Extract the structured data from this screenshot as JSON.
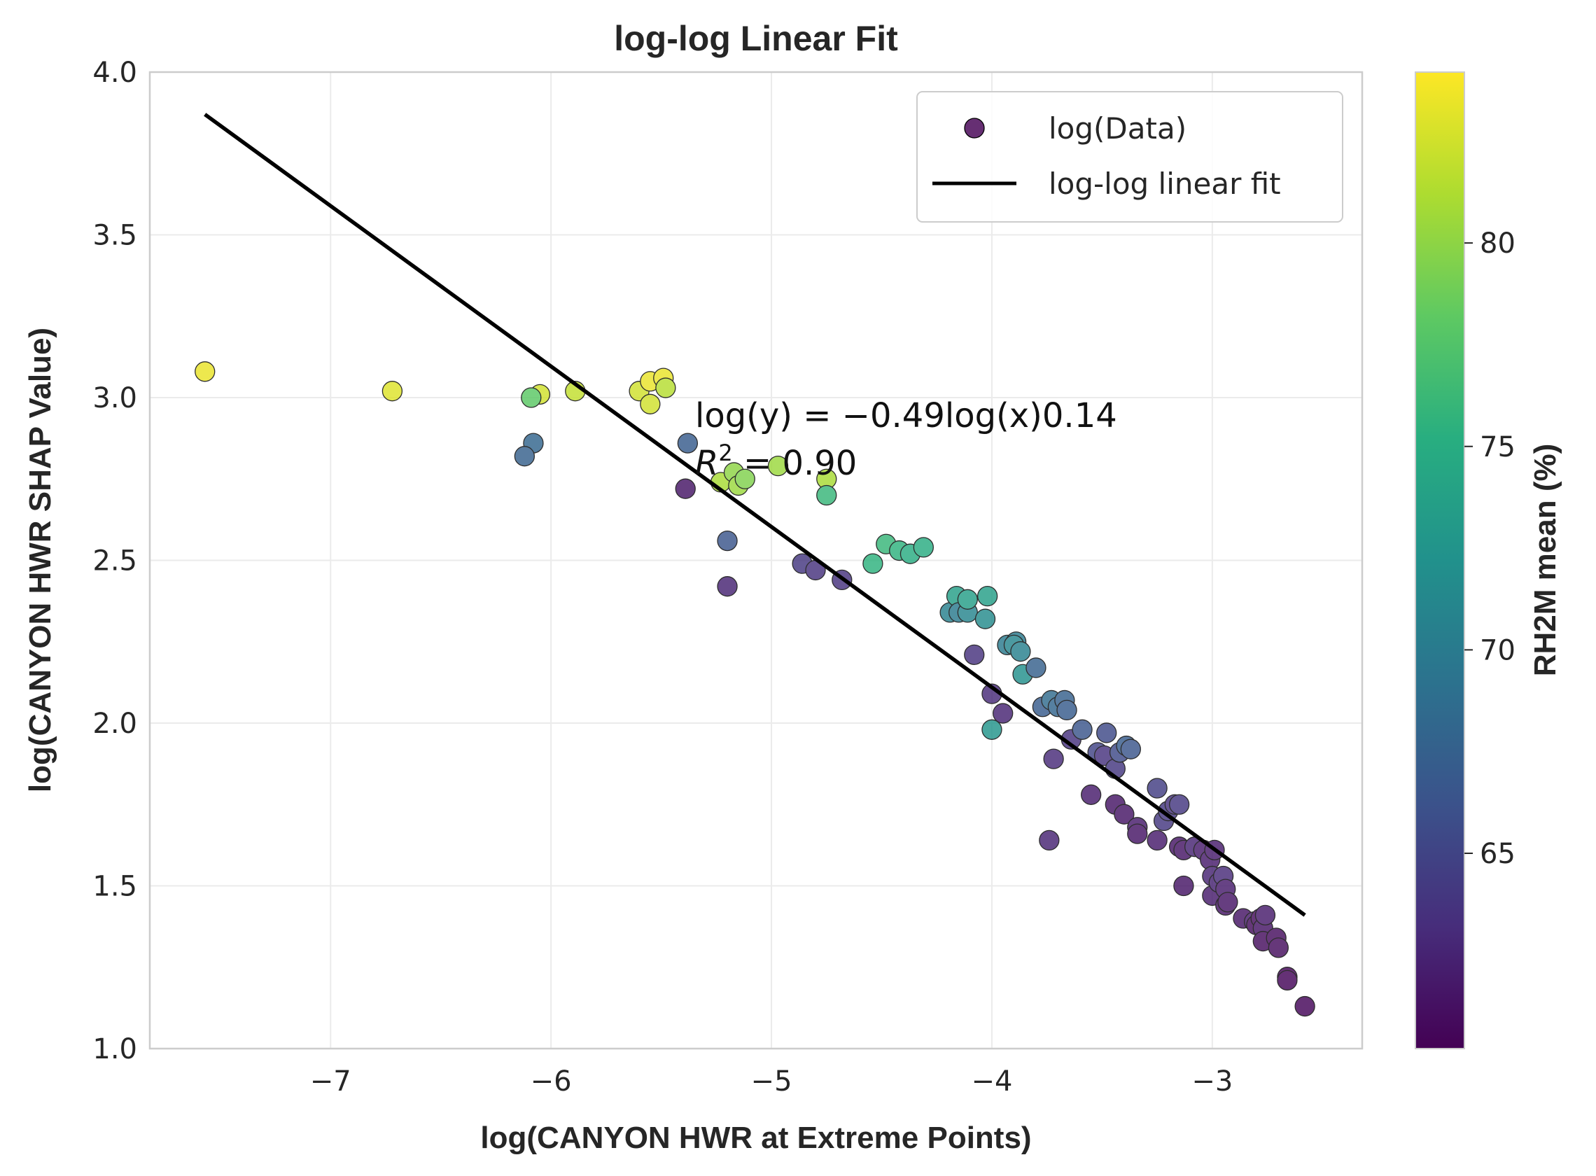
{
  "chart_data": {
    "type": "scatter",
    "title": "log-log Linear Fit",
    "xlabel": "log(CANYON HWR at Extreme Points)",
    "ylabel": "log(CANYON HWR SHAP Value)",
    "xlim": [
      -7.82,
      -2.32
    ],
    "ylim": [
      1.0,
      4.0
    ],
    "xticks": [
      -7,
      -6,
      -5,
      -4,
      -3
    ],
    "xtick_labels": [
      "−7",
      "−6",
      "−5",
      "−4",
      "−3"
    ],
    "yticks": [
      1.0,
      1.5,
      2.0,
      2.5,
      3.0,
      3.5,
      4.0
    ],
    "ytick_labels": [
      "1.0",
      "1.5",
      "2.0",
      "2.5",
      "3.0",
      "3.5",
      "4.0"
    ],
    "grid": true,
    "legend": {
      "position": "top-right",
      "entries": [
        {
          "label": "log(Data)",
          "kind": "marker"
        },
        {
          "label": "log-log linear fit",
          "kind": "line"
        }
      ]
    },
    "annotation": {
      "line1": "log(y) = −0.49log(x)0.14",
      "line2_base": "R",
      "line2_sup": "2",
      "line2_rest": " = 0.90",
      "x": -5.32,
      "y": 2.92
    },
    "fit_line": {
      "x": [
        -7.57,
        -2.58
      ],
      "y": [
        3.87,
        1.41
      ],
      "color": "#000000"
    },
    "colorbar": {
      "label": "RH2M mean (%)",
      "min": 60.2,
      "max": 84.2,
      "ticks": [
        65,
        70,
        75,
        80
      ],
      "tick_labels": [
        "65",
        "70",
        "75",
        "80"
      ],
      "colormap": "viridis"
    },
    "series": [
      {
        "name": "log(Data)",
        "points": [
          [
            -7.57,
            3.08,
            83.5
          ],
          [
            -6.72,
            3.02,
            83.0
          ],
          [
            -6.05,
            3.01,
            82.5
          ],
          [
            -5.89,
            3.02,
            82.0
          ],
          [
            -5.6,
            3.02,
            82.5
          ],
          [
            -5.55,
            3.05,
            83.5
          ],
          [
            -5.49,
            3.06,
            83.5
          ],
          [
            -5.48,
            3.03,
            81.5
          ],
          [
            -5.55,
            2.98,
            82.5
          ],
          [
            -6.09,
            3.0,
            78.0
          ],
          [
            -6.08,
            2.86,
            68.0
          ],
          [
            -6.12,
            2.82,
            67.5
          ],
          [
            -5.38,
            2.86,
            67.0
          ],
          [
            -5.39,
            2.72,
            61.5
          ],
          [
            -5.23,
            2.74,
            81.0
          ],
          [
            -5.17,
            2.77,
            80.0
          ],
          [
            -5.15,
            2.73,
            80.5
          ],
          [
            -5.12,
            2.75,
            79.5
          ],
          [
            -4.97,
            2.79,
            80.5
          ],
          [
            -4.75,
            2.75,
            81.0
          ],
          [
            -4.75,
            2.7,
            76.0
          ],
          [
            -5.2,
            2.56,
            66.5
          ],
          [
            -5.2,
            2.42,
            62.5
          ],
          [
            -4.86,
            2.49,
            64.0
          ],
          [
            -4.8,
            2.47,
            63.5
          ],
          [
            -4.68,
            2.44,
            63.5
          ],
          [
            -4.54,
            2.49,
            75.5
          ],
          [
            -4.48,
            2.55,
            76.0
          ],
          [
            -4.42,
            2.53,
            75.5
          ],
          [
            -4.37,
            2.52,
            75.0
          ],
          [
            -4.31,
            2.54,
            75.0
          ],
          [
            -4.19,
            2.34,
            70.5
          ],
          [
            -4.16,
            2.39,
            73.5
          ],
          [
            -4.15,
            2.34,
            70.0
          ],
          [
            -4.11,
            2.34,
            71.0
          ],
          [
            -4.11,
            2.38,
            73.5
          ],
          [
            -4.03,
            2.32,
            71.5
          ],
          [
            -4.02,
            2.39,
            73.5
          ],
          [
            -4.08,
            2.21,
            63.5
          ],
          [
            -3.93,
            2.24,
            70.0
          ],
          [
            -3.89,
            2.25,
            70.0
          ],
          [
            -3.9,
            2.24,
            71.0
          ],
          [
            -3.87,
            2.22,
            70.5
          ],
          [
            -3.86,
            2.15,
            72.0
          ],
          [
            -3.8,
            2.17,
            67.5
          ],
          [
            -4.0,
            2.09,
            63.0
          ],
          [
            -3.95,
            2.03,
            62.5
          ],
          [
            -4.0,
            1.98,
            72.5
          ],
          [
            -3.77,
            2.05,
            67.0
          ],
          [
            -3.73,
            2.07,
            68.5
          ],
          [
            -3.7,
            2.05,
            68.0
          ],
          [
            -3.67,
            2.07,
            67.5
          ],
          [
            -3.66,
            2.04,
            67.0
          ],
          [
            -3.64,
            1.95,
            63.5
          ],
          [
            -3.72,
            1.89,
            63.0
          ],
          [
            -3.59,
            1.98,
            66.5
          ],
          [
            -3.52,
            1.91,
            65.0
          ],
          [
            -3.49,
            1.9,
            63.5
          ],
          [
            -3.48,
            1.97,
            65.5
          ],
          [
            -3.44,
            1.86,
            64.0
          ],
          [
            -3.42,
            1.91,
            65.5
          ],
          [
            -3.39,
            1.93,
            67.0
          ],
          [
            -3.37,
            1.92,
            66.5
          ],
          [
            -3.55,
            1.78,
            62.0
          ],
          [
            -3.74,
            1.64,
            62.5
          ],
          [
            -3.44,
            1.75,
            61.5
          ],
          [
            -3.4,
            1.72,
            61.5
          ],
          [
            -3.34,
            1.68,
            62.0
          ],
          [
            -3.34,
            1.66,
            61.5
          ],
          [
            -3.25,
            1.64,
            62.0
          ],
          [
            -3.25,
            1.8,
            64.5
          ],
          [
            -3.22,
            1.7,
            64.0
          ],
          [
            -3.2,
            1.73,
            64.0
          ],
          [
            -3.17,
            1.75,
            63.5
          ],
          [
            -3.15,
            1.75,
            64.0
          ],
          [
            -3.15,
            1.62,
            61.5
          ],
          [
            -3.13,
            1.61,
            61.5
          ],
          [
            -3.13,
            1.5,
            61.5
          ],
          [
            -3.08,
            1.62,
            62.5
          ],
          [
            -3.04,
            1.61,
            62.0
          ],
          [
            -3.01,
            1.58,
            62.0
          ],
          [
            -2.99,
            1.61,
            62.0
          ],
          [
            -3.0,
            1.53,
            62.5
          ],
          [
            -3.0,
            1.47,
            62.0
          ],
          [
            -2.97,
            1.51,
            62.5
          ],
          [
            -2.95,
            1.53,
            63.0
          ],
          [
            -2.94,
            1.49,
            62.0
          ],
          [
            -2.94,
            1.44,
            61.5
          ],
          [
            -2.93,
            1.45,
            61.5
          ],
          [
            -2.86,
            1.4,
            61.5
          ],
          [
            -2.81,
            1.39,
            62.0
          ],
          [
            -2.8,
            1.38,
            61.0
          ],
          [
            -2.78,
            1.4,
            61.0
          ],
          [
            -2.77,
            1.37,
            61.5
          ],
          [
            -2.77,
            1.33,
            61.0
          ],
          [
            -2.76,
            1.41,
            62.0
          ],
          [
            -2.71,
            1.34,
            61.0
          ],
          [
            -2.7,
            1.31,
            61.0
          ],
          [
            -2.66,
            1.22,
            60.5
          ],
          [
            -2.66,
            1.21,
            60.5
          ],
          [
            -2.58,
            1.13,
            60.5
          ]
        ]
      }
    ]
  }
}
